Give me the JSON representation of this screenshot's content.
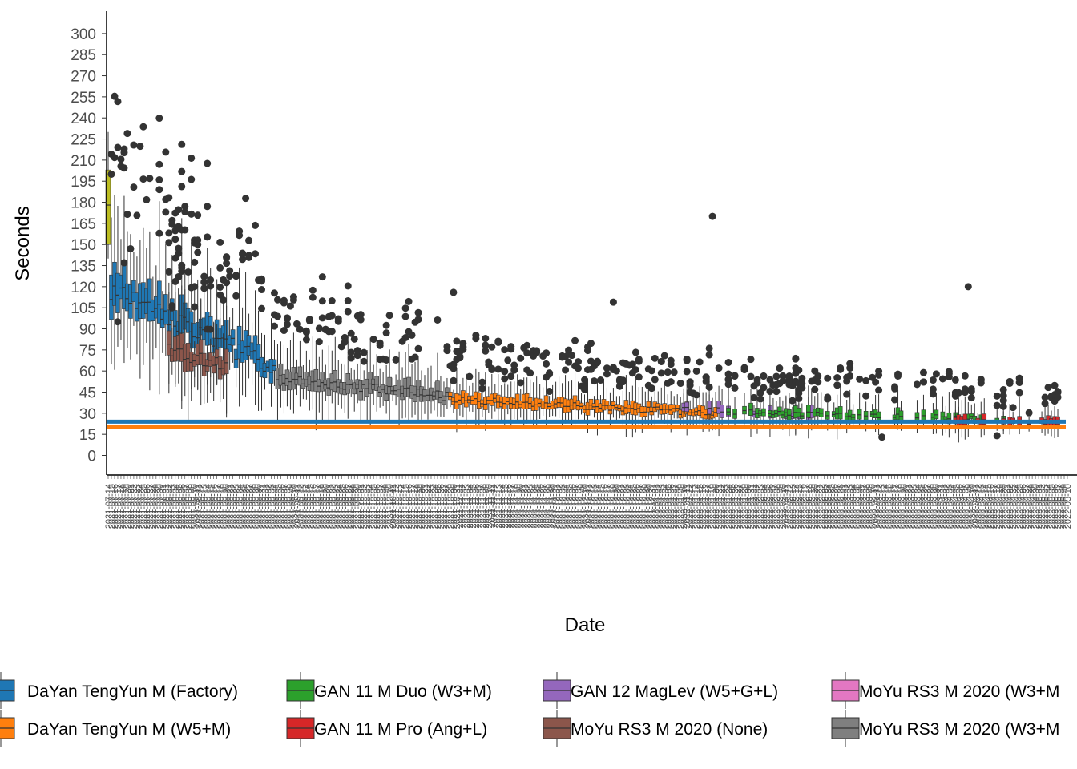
{
  "chart_data": {
    "type": "box",
    "xlabel": "Date",
    "ylabel": "Seconds",
    "ylim": [
      -10,
      310
    ],
    "yticks": [
      0,
      15,
      30,
      45,
      60,
      75,
      90,
      105,
      120,
      135,
      150,
      165,
      180,
      195,
      210,
      225,
      240,
      255,
      270,
      285,
      300
    ],
    "x_tick_labels": [
      "2021-07-14",
      "2021-07-15",
      "2021-07-16",
      "2021-07-17",
      "2021-07-18",
      "2021-07-19",
      "2021-07-20",
      "2021-07-21",
      "2021-07-22",
      "2021-07-23",
      "2021-07-24",
      "2021-07-25",
      "2021-07-26",
      "2021-07-27",
      "2021-07-28",
      "2021-07-29",
      "2021-07-30",
      "2021-07-31",
      "2021-08-01",
      "2021-08-02",
      "2021-08-03",
      "2021-08-04",
      "2021-08-05",
      "2021-08-06",
      "2021-08-07",
      "2021-08-08",
      "2021-08-09",
      "2021-08-10",
      "2021-08-11",
      "2021-08-12",
      "2021-08-13",
      "2021-08-14",
      "2021-08-15",
      "2021-08-16",
      "2021-08-17",
      "2021-08-18",
      "2021-08-19",
      "2021-08-20",
      "2021-08-21",
      "2021-08-22",
      "2021-08-23",
      "2021-08-24",
      "2021-08-25",
      "2021-08-26",
      "2021-08-27",
      "2021-08-28",
      "2021-08-29",
      "2021-08-30",
      "2021-08-31",
      "2021-09-01",
      "2021-09-02",
      "2021-09-03",
      "2021-09-04",
      "2021-09-05",
      "2021-09-06",
      "2021-09-07",
      "2021-09-08",
      "2021-09-09",
      "2021-09-10",
      "2021-09-11",
      "2021-09-12",
      "2021-09-13",
      "2021-09-14",
      "2021-09-15",
      "2021-09-16",
      "2021-09-17",
      "2021-09-18",
      "2021-09-19",
      "2021-09-20",
      "2021-09-21",
      "2021-09-22",
      "2021-09-23",
      "2021-09-24",
      "2021-09-25",
      "2021-09-26",
      "2021-09-27",
      "2021-09-28",
      "2021-09-29",
      "2021-09-30",
      "2021-10-01",
      "2021-10-02",
      "2021-10-03",
      "2021-10-04",
      "2021-10-05",
      "2021-10-06",
      "2021-10-07",
      "2021-10-08",
      "2021-10-09",
      "2021-10-10",
      "2021-10-11",
      "2021-10-12",
      "2021-10-13",
      "2021-10-14",
      "2021-10-15",
      "2021-10-16",
      "2021-10-17",
      "2021-10-18",
      "2021-10-19",
      "2021-10-20",
      "2021-10-21",
      "2021-10-22",
      "2021-10-23",
      "2021-10-24",
      "2021-10-25",
      "2021-10-26",
      "2021-10-27",
      "2021-10-28",
      "2021-10-29",
      "2021-10-30",
      "2021-10-31",
      "2021-11-01",
      "2021-11-02",
      "2021-11-03",
      "2021-11-04",
      "2021-11-05",
      "2021-11-06",
      "2021-11-07",
      "2021-11-08",
      "2021-11-09",
      "2021-11-10",
      "2021-11-11",
      "2021-11-12",
      "2021-11-13",
      "2021-11-14",
      "2021-11-15",
      "2021-11-16",
      "2021-11-17",
      "2021-11-18",
      "2021-11-19",
      "2021-11-20",
      "2021-11-21",
      "2021-11-22",
      "2021-11-23",
      "2021-11-24",
      "2021-11-25",
      "2021-11-26",
      "2021-11-27",
      "2021-11-28",
      "2021-11-29",
      "2021-11-30",
      "2021-12-01",
      "2021-12-02",
      "2021-12-03",
      "2021-12-04",
      "2021-12-05",
      "2021-12-06",
      "2021-12-07",
      "2021-12-08",
      "2021-12-09",
      "2021-12-10",
      "2021-12-11",
      "2021-12-12",
      "2021-12-13",
      "2021-12-14",
      "2021-12-15",
      "2021-12-16",
      "2021-12-17",
      "2021-12-18",
      "2021-12-19",
      "2021-12-20",
      "2021-12-21",
      "2021-12-22",
      "2021-12-23",
      "2021-12-24",
      "2021-12-25",
      "2021-12-26",
      "2021-12-27",
      "2021-12-28",
      "2021-12-29",
      "2021-12-30",
      "2021-12-31",
      "2022-01-01",
      "2022-01-02",
      "2022-01-03",
      "2022-01-04",
      "2022-01-05",
      "2022-01-06",
      "2022-01-07",
      "2022-01-08",
      "2022-01-09",
      "2022-01-10",
      "2022-01-11",
      "2022-01-12",
      "2022-01-13",
      "2022-01-14",
      "2022-01-15",
      "2022-01-16",
      "2022-01-17",
      "2022-01-18",
      "2022-01-19",
      "2022-01-20",
      "2022-01-21",
      "2022-01-22",
      "2022-01-23",
      "2022-01-24",
      "2022-01-25",
      "2022-01-26",
      "2022-01-27",
      "2022-01-28",
      "2022-01-29",
      "2022-01-30",
      "2022-01-31",
      "2022-02-01",
      "2022-02-02",
      "2022-02-03",
      "2022-02-04",
      "2022-02-05",
      "2022-02-06",
      "2022-02-07",
      "2022-02-08",
      "2022-02-09",
      "2022-02-10",
      "2022-02-11",
      "2022-02-12",
      "2022-02-13",
      "2022-02-14",
      "2022-02-15",
      "2022-02-16",
      "2022-02-17",
      "2022-02-18",
      "2022-02-19",
      "2022-02-20",
      "2022-02-21",
      "2022-02-22",
      "2022-02-23",
      "2022-02-24",
      "2022-02-25",
      "2022-02-26",
      "2022-02-27",
      "2022-02-28",
      "2022-03-01",
      "2022-03-02",
      "2022-03-03",
      "2022-03-04",
      "2022-03-05",
      "2022-03-06",
      "2022-03-07",
      "2022-03-08",
      "2022-03-09",
      "2022-03-10",
      "2022-03-11",
      "2022-03-12",
      "2022-03-13",
      "2022-03-14",
      "2022-03-15",
      "2022-03-16",
      "2022-03-17",
      "2022-03-18",
      "2022-03-19",
      "2022-03-20",
      "2022-03-21",
      "2022-03-22",
      "2022-03-23",
      "2022-03-24",
      "2022-03-25",
      "2022-03-26",
      "2022-03-27",
      "2022-03-28",
      "2022-03-29",
      "2022-03-30",
      "2022-03-31",
      "2022-04-01",
      "2022-04-02",
      "2022-04-03",
      "2022-04-04",
      "2022-04-05",
      "2022-04-06",
      "2022-04-07",
      "2022-04-08",
      "2022-04-09",
      "2022-04-10",
      "2022-04-11",
      "2022-04-12",
      "2022-04-13",
      "2022-04-14",
      "2022-04-15",
      "2022-04-16",
      "2022-04-17",
      "2022-04-18",
      "2022-04-19",
      "2022-04-20",
      "2022-04-21",
      "2022-04-22",
      "2022-04-23",
      "2022-04-24",
      "2022-04-25",
      "2022-04-26",
      "2022-04-27",
      "2022-04-28",
      "2022-04-29",
      "2022-04-30",
      "2022-05-01",
      "2022-05-02",
      "2022-05-03",
      "2022-05-04",
      "2022-05-05",
      "2022-05-06",
      "2022-05-07",
      "2022-05-08",
      "2022-05-09",
      "2022-05-10"
    ],
    "reference_lines": [
      {
        "color": "#1f77b4",
        "y": 24
      },
      {
        "color": "#ff7f0e",
        "y": 20
      }
    ],
    "legend": {
      "placement": "bottom",
      "items": [
        {
          "name": "DaYan TengYun M (Factory)",
          "color": "#1f77b4"
        },
        {
          "name": "DaYan TengYun M (W5+M)",
          "color": "#ff7f0e"
        },
        {
          "name": "GAN 11 M Duo (W3+M)",
          "color": "#2ca02c"
        },
        {
          "name": "GAN 11 M Pro (Ang+L)",
          "color": "#d62728"
        },
        {
          "name": "GAN 12 MagLev (W5+G+L)",
          "color": "#9467bd"
        },
        {
          "name": "MoYu RS3 M 2020 (None)",
          "color": "#8c564b"
        },
        {
          "name": "MoYu RS3 M 2020 (W3+M",
          "color": "#e377c2"
        },
        {
          "name": "MoYu RS3 M 2020 (W3+M",
          "color": "#7f7f7f"
        }
      ]
    },
    "first_box": {
      "color": "#bcbd22",
      "q1": 150,
      "median": 178,
      "q3": 203,
      "whisker_low": 140,
      "whisker_high": 230
    },
    "series": [
      {
        "name": "DaYan TengYun M (Factory)",
        "color": "#1f77b4",
        "date_range": [
          "2021-07-15",
          "2021-09-04"
        ],
        "median_start": 118,
        "median_end": 62
      },
      {
        "name": "MoYu RS3 M 2020 (None)",
        "color": "#8c564b",
        "date_range": [
          "2021-08-02",
          "2021-08-20"
        ],
        "median_start": 75,
        "median_end": 63
      },
      {
        "name": "MoYu RS3 M 2020 (W3+M",
        "color": "#7f7f7f",
        "date_range": [
          "2021-09-05",
          "2021-10-28"
        ],
        "median_start": 55,
        "median_end": 42
      },
      {
        "name": "DaYan TengYun M (W5+M)",
        "color": "#ff7f0e",
        "date_range": [
          "2021-10-29",
          "2022-01-20"
        ],
        "median_start": 40,
        "median_end": 30
      },
      {
        "name": "GAN 12 MagLev (W5+G+L)",
        "color": "#9467bd",
        "date_range": [
          "2022-01-10",
          "2022-02-20"
        ],
        "median_start": 33,
        "median_end": 29
      },
      {
        "name": "GAN 11 M Duo (W3+M)",
        "color": "#2ca02c",
        "date_range": [
          "2022-01-24",
          "2022-04-20"
        ],
        "median_start": 31,
        "median_end": 26
      },
      {
        "name": "GAN 11 M Pro (Ang+L)",
        "color": "#d62728",
        "date_range": [
          "2022-04-05",
          "2022-05-10"
        ],
        "median_start": 25,
        "median_end": 23
      }
    ],
    "notable_outliers": [
      {
        "x": "2021-07-17",
        "y": 95
      },
      {
        "x": "2021-07-19",
        "y": 137
      },
      {
        "x": "2021-07-21",
        "y": 147
      },
      {
        "x": "2021-07-27",
        "y": 197
      },
      {
        "x": "2021-07-30",
        "y": 196
      },
      {
        "x": "2021-07-30",
        "y": 158
      },
      {
        "x": "2021-08-06",
        "y": 131
      },
      {
        "x": "2021-08-14",
        "y": 177
      },
      {
        "x": "2021-08-25",
        "y": 143
      },
      {
        "x": "2021-08-31",
        "y": 124
      },
      {
        "x": "2021-09-19",
        "y": 127
      },
      {
        "x": "2021-10-30",
        "y": 116
      },
      {
        "x": "2021-12-19",
        "y": 109
      },
      {
        "x": "2022-01-19",
        "y": 170
      },
      {
        "x": "2022-03-13",
        "y": 13
      },
      {
        "x": "2022-04-09",
        "y": 120
      },
      {
        "x": "2022-04-18",
        "y": 14
      }
    ]
  }
}
